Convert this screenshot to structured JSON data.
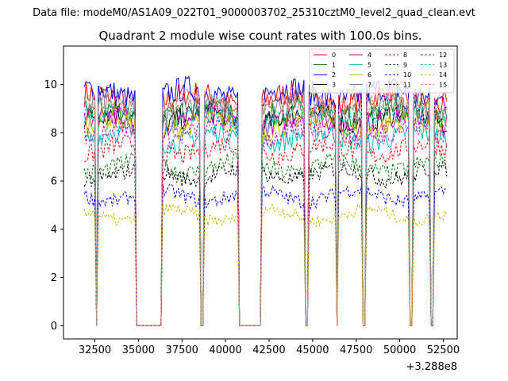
{
  "suptitle": "Data file: modeM0/AS1A09_022T01_9000003702_25310cztM0_level2_quad_clean.evt",
  "chart_data": {
    "type": "line",
    "title": "Quadrant 2 module wise count rates with 100.0s bins.",
    "xlabel": "",
    "ylabel": "",
    "x_offset_label": "+3.288e8",
    "xlim": [
      30700,
      53300
    ],
    "ylim": [
      -0.55,
      11.6
    ],
    "x_ticks": [
      32500,
      35000,
      37500,
      40000,
      42500,
      45000,
      47500,
      50000,
      52500
    ],
    "x_tick_labels": [
      "32500",
      "35000",
      "37500",
      "40000",
      "42500",
      "45000",
      "47500",
      "50000",
      "52500"
    ],
    "y_ticks": [
      0,
      2,
      4,
      6,
      8,
      10
    ],
    "y_tick_labels": [
      "0",
      "2",
      "4",
      "6",
      "8",
      "10"
    ],
    "legend_position": "top-right",
    "x_start": 31900,
    "x_end": 52700,
    "bin_width": 100,
    "active_segments": [
      [
        31900,
        32500
      ],
      [
        32700,
        34800
      ],
      [
        36400,
        38500
      ],
      [
        38800,
        40700
      ],
      [
        42100,
        44500
      ],
      [
        44800,
        46300
      ],
      [
        46500,
        47800
      ],
      [
        48100,
        50500
      ],
      [
        50800,
        51700
      ],
      [
        52000,
        52700
      ]
    ],
    "series": [
      {
        "name": "0",
        "color": "#ff0000",
        "dash": "solid",
        "level": 9.4
      },
      {
        "name": "1",
        "color": "#008000",
        "dash": "solid",
        "level": 8.8
      },
      {
        "name": "2",
        "color": "#0000ff",
        "dash": "solid",
        "level": 9.6
      },
      {
        "name": "3",
        "color": "#000000",
        "dash": "solid",
        "level": 8.6
      },
      {
        "name": "4",
        "color": "#bf00bf",
        "dash": "solid",
        "level": 8.5
      },
      {
        "name": "5",
        "color": "#00bfbf",
        "dash": "solid",
        "level": 7.8
      },
      {
        "name": "6",
        "color": "#bfbf00",
        "dash": "solid",
        "level": 8.3
      },
      {
        "name": "7",
        "color": "#808080",
        "dash": "solid",
        "level": 9.0
      },
      {
        "name": "8",
        "color": "#ff0000",
        "dash": "dashed",
        "level": 7.3
      },
      {
        "name": "9",
        "color": "#008000",
        "dash": "dashed",
        "level": 6.6
      },
      {
        "name": "10",
        "color": "#0000ff",
        "dash": "dashed",
        "level": 5.4
      },
      {
        "name": "11",
        "color": "#000000",
        "dash": "dashed",
        "level": 6.3
      },
      {
        "name": "12",
        "color": "#bf00bf",
        "dash": "dashed",
        "level": 8.0
      },
      {
        "name": "13",
        "color": "#00bfbf",
        "dash": "dashed",
        "level": 8.7
      },
      {
        "name": "14",
        "color": "#bfbf00",
        "dash": "dashed",
        "level": 4.6
      },
      {
        "name": "15",
        "color": "#fa8072",
        "dash": "dashed",
        "level": 9.2
      }
    ]
  }
}
